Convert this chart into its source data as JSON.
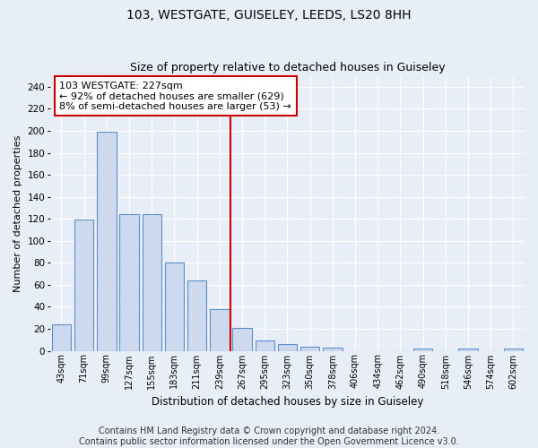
{
  "title": "103, WESTGATE, GUISELEY, LEEDS, LS20 8HH",
  "subtitle": "Size of property relative to detached houses in Guiseley",
  "xlabel": "Distribution of detached houses by size in Guiseley",
  "ylabel": "Number of detached properties",
  "bar_color": "#ccd9ee",
  "bar_edge_color": "#6090c8",
  "background_color": "#e8eef8",
  "grid_color": "#ffffff",
  "categories": [
    "43sqm",
    "71sqm",
    "99sqm",
    "127sqm",
    "155sqm",
    "183sqm",
    "211sqm",
    "239sqm",
    "267sqm",
    "295sqm",
    "323sqm",
    "350sqm",
    "378sqm",
    "406sqm",
    "434sqm",
    "462sqm",
    "490sqm",
    "518sqm",
    "546sqm",
    "574sqm",
    "602sqm"
  ],
  "values": [
    24,
    119,
    199,
    124,
    124,
    80,
    64,
    38,
    21,
    9,
    6,
    4,
    3,
    0,
    0,
    0,
    2,
    0,
    2,
    0,
    2
  ],
  "ylim": [
    0,
    250
  ],
  "yticks": [
    0,
    20,
    40,
    60,
    80,
    100,
    120,
    140,
    160,
    180,
    200,
    220,
    240
  ],
  "property_line_x": 7.5,
  "annotation_text": "103 WESTGATE: 227sqm\n← 92% of detached houses are smaller (629)\n8% of semi-detached houses are larger (53) →",
  "annotation_box_color": "#ffffff",
  "annotation_border_color": "#cc0000",
  "vline_color": "#cc0000",
  "footer_text": "Contains HM Land Registry data © Crown copyright and database right 2024.\nContains public sector information licensed under the Open Government Licence v3.0.",
  "title_fontsize": 10,
  "subtitle_fontsize": 9,
  "annotation_fontsize": 8,
  "footer_fontsize": 7,
  "ylabel_fontsize": 8,
  "xlabel_fontsize": 8.5,
  "ytick_fontsize": 7.5,
  "xtick_fontsize": 7
}
